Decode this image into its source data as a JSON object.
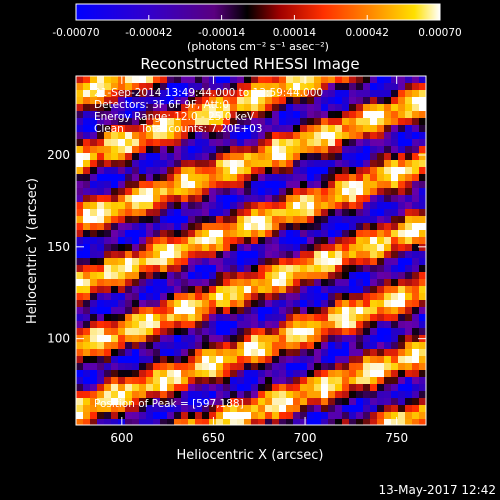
{
  "chart_data": {
    "type": "heatmap",
    "title": "Reconstructed RHESSI Image",
    "xlabel": "Heliocentric X (arcsec)",
    "ylabel": "Heliocentric Y (arcsec)",
    "xlim": [
      575,
      766
    ],
    "ylim": [
      53,
      243
    ],
    "x_ticks": [
      "600",
      "650",
      "700",
      "750"
    ],
    "y_ticks": [
      "100",
      "150",
      "200"
    ],
    "colorbar": {
      "min": -0.0007,
      "max": 0.0007,
      "tick_labels": [
        "-0.00070",
        "-0.00042",
        "-0.00014",
        "0.00014",
        "0.00042",
        "0.00070"
      ],
      "unit_label": "(photons cm⁻² s⁻¹ asec⁻²)"
    },
    "annotations": [
      "21-Sep-2014 13:49:44.000 to 13:59:44.000",
      "Detectors: 3F 6F 9F, Att:0",
      "Energy Range: 12.0 - 25.0 keV",
      "Clean     Total counts: 7.20E+03"
    ],
    "peak_position": "Position of Peak = [597,188]",
    "timestamp": "13-May-2017 12:42"
  },
  "colors": {
    "background": "#000000",
    "text": "#ffffff",
    "colormap": [
      "#0000ff",
      "#2a00c0",
      "#6a00a8",
      "#000000",
      "#b01010",
      "#ff2a00",
      "#ff8000",
      "#ffd000",
      "#ffffff"
    ]
  }
}
